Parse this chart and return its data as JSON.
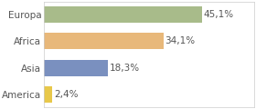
{
  "categories": [
    "Europa",
    "Africa",
    "Asia",
    "America"
  ],
  "values": [
    45.1,
    34.1,
    18.3,
    2.4
  ],
  "bar_colors": [
    "#a8bb8a",
    "#e8b87a",
    "#7a90bf",
    "#e8c84a"
  ],
  "labels": [
    "45,1%",
    "34,1%",
    "18,3%",
    "2,4%"
  ],
  "xlim": [
    0,
    60
  ],
  "background_color": "#ffffff",
  "bar_height": 0.62,
  "fontsize": 7.5,
  "label_color": "#555555",
  "ytick_color": "#555555"
}
